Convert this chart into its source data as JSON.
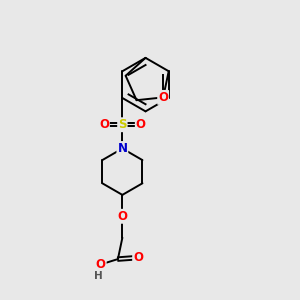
{
  "background_color": "#e8e8e8",
  "figure_size": [
    3.0,
    3.0
  ],
  "dpi": 100,
  "atom_colors": {
    "C": "#000000",
    "N": "#0000cc",
    "O": "#ff0000",
    "S": "#cccc00",
    "H": "#555555"
  },
  "bond_color": "#000000",
  "bond_width": 1.4,
  "font_size_atom": 8.5
}
